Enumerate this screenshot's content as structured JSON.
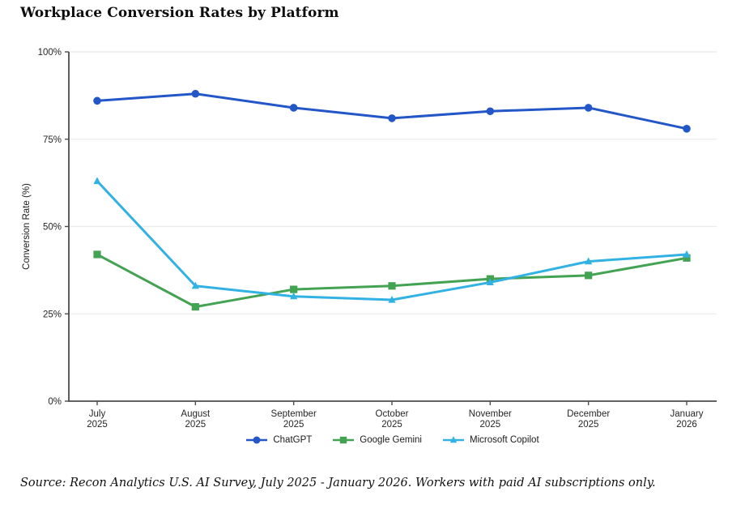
{
  "page": {
    "source_note": "Source: Recon Analytics U.S. AI Survey, July 2025 - January 2026. Workers with paid AI subscriptions only."
  },
  "chart_data": {
    "type": "line",
    "title": "Workplace Conversion Rates by Platform",
    "xlabel": "",
    "ylabel": "Conversion Rate (%)",
    "ylim": [
      0,
      100
    ],
    "yticks": [
      0,
      25,
      50,
      75,
      100
    ],
    "ytick_labels": [
      "0%",
      "25%",
      "50%",
      "75%",
      "100%"
    ],
    "grid": "horizontal",
    "legend_position": "bottom-center",
    "categories": [
      [
        "July",
        "2025"
      ],
      [
        "August",
        "2025"
      ],
      [
        "September",
        "2025"
      ],
      [
        "October",
        "2025"
      ],
      [
        "November",
        "2025"
      ],
      [
        "December",
        "2025"
      ],
      [
        "January",
        "2026"
      ]
    ],
    "series": [
      {
        "name": "ChatGPT",
        "marker": "circle",
        "color": "#2356c6",
        "values": [
          86,
          88,
          84,
          81,
          83,
          84,
          78
        ]
      },
      {
        "name": "Google Gemini",
        "marker": "square",
        "color": "#43a353",
        "values": [
          42,
          27,
          32,
          33,
          35,
          36,
          41
        ]
      },
      {
        "name": "Microsoft Copilot",
        "marker": "triangle",
        "color": "#32b1e3",
        "values": [
          63,
          33,
          30,
          29,
          34,
          40,
          42
        ]
      }
    ]
  },
  "style": {
    "grid_color": "#ebebeb",
    "axis_color": "#4d4d4d",
    "tick_text_color": "#262626"
  }
}
